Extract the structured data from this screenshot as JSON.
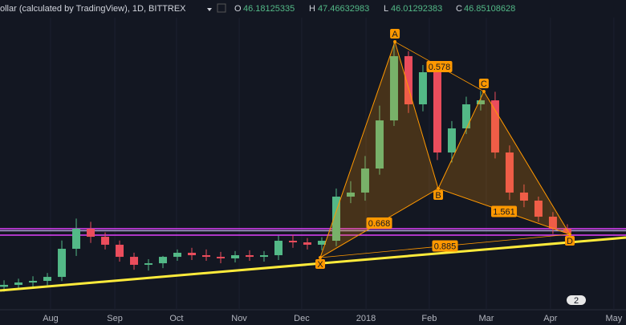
{
  "header": {
    "symbol": "ollar (calculated by TradingView), 1D, BITTREX",
    "o_label": "O",
    "o": 46.18125335,
    "h_label": "H",
    "h": 47.46632983,
    "l_label": "L",
    "l": 46.01292383,
    "c_label": "C",
    "c": 46.85108628
  },
  "badge": "2",
  "chart_data": {
    "type": "candlestick",
    "x": [
      0,
      1,
      2,
      3,
      4,
      5,
      6,
      7,
      8,
      9,
      10,
      11,
      12,
      13,
      14,
      15,
      16,
      17,
      18,
      19,
      20,
      21,
      22,
      23,
      24,
      25,
      26,
      27,
      28,
      29,
      30,
      31,
      32,
      33,
      34,
      35,
      36,
      37,
      38,
      39
    ],
    "open": [
      40.2,
      40.44,
      40.73,
      40.93,
      41.42,
      44.88,
      47.35,
      46.36,
      45.38,
      43.89,
      42.91,
      43.1,
      43.89,
      44.39,
      44.09,
      43.89,
      43.7,
      44.09,
      43.89,
      44.09,
      45.87,
      45.67,
      45.38,
      45.87,
      51.3,
      51.8,
      54.76,
      60.68,
      68.59,
      62.66,
      66.61,
      56.73,
      59.7,
      62.66,
      63.15,
      56.73,
      51.8,
      50.81,
      48.83,
      47.35
    ],
    "high": [
      41.0,
      41.2,
      41.5,
      41.9,
      45.9,
      48.6,
      48.2,
      46.9,
      45.9,
      44.4,
      43.6,
      44.0,
      44.8,
      45.0,
      44.8,
      44.5,
      44.6,
      44.7,
      44.6,
      46.5,
      46.6,
      46.2,
      46.3,
      52.3,
      53.2,
      56.3,
      62.5,
      70.4,
      69.2,
      67.5,
      67.2,
      60.6,
      63.6,
      64.3,
      64.2,
      57.6,
      52.8,
      51.3,
      49.4,
      47.9
    ],
    "low": [
      39.6,
      39.9,
      40.2,
      40.4,
      40.9,
      44.0,
      45.6,
      44.8,
      43.3,
      42.3,
      42.2,
      42.5,
      43.4,
      43.5,
      43.4,
      43.1,
      43.2,
      43.4,
      43.3,
      43.5,
      45.0,
      44.8,
      44.7,
      45.2,
      50.5,
      50.8,
      54.0,
      60.0,
      61.6,
      61.8,
      55.8,
      55.5,
      59.0,
      61.9,
      56.0,
      50.9,
      50.0,
      48.2,
      46.7,
      46.0
    ],
    "close": [
      40.44,
      40.73,
      40.93,
      41.42,
      44.88,
      47.35,
      46.36,
      45.38,
      43.89,
      42.91,
      43.1,
      43.89,
      44.39,
      44.09,
      43.89,
      43.7,
      44.09,
      43.89,
      44.09,
      45.87,
      45.67,
      45.38,
      45.87,
      51.3,
      51.8,
      54.76,
      60.68,
      68.59,
      62.66,
      66.61,
      56.73,
      59.7,
      62.66,
      63.15,
      56.73,
      51.8,
      50.81,
      48.83,
      47.35,
      46.86
    ],
    "up_color": "#53b987",
    "down_color": "#eb4d5c",
    "xlim": [
      -0.28,
      43.06
    ],
    "ylim": [
      35.5,
      75.5
    ],
    "xticks": [
      {
        "value": 3.22,
        "label": "Aug"
      },
      {
        "value": 7.67,
        "label": "Sep"
      },
      {
        "value": 11.94,
        "label": "Oct"
      },
      {
        "value": 16.28,
        "label": "Nov"
      },
      {
        "value": 20.61,
        "label": "Dec"
      },
      {
        "value": 25.06,
        "label": "2018"
      },
      {
        "value": 29.44,
        "label": "Feb"
      },
      {
        "value": 33.39,
        "label": "Mar"
      },
      {
        "value": 37.83,
        "label": "Apr"
      },
      {
        "value": 42.22,
        "label": "May"
      }
    ],
    "levels": [
      {
        "value": 47.35,
        "color": "#e040fb"
      },
      {
        "value": 47.1,
        "color": "#b39ddb"
      },
      {
        "value": 46.56,
        "color": "#e040fb"
      }
    ],
    "trendline": {
      "x": [
        -0.28,
        43.06
      ],
      "y": [
        39.75,
        46.26
      ],
      "color": "#ffeb3b"
    },
    "pattern": {
      "color": "#ff9800",
      "points": [
        {
          "label": "X",
          "x": 21.89,
          "y": 43.8
        },
        {
          "label": "A",
          "x": 27.06,
          "y": 70.36
        },
        {
          "label": "B",
          "x": 30.06,
          "y": 52.29
        },
        {
          "label": "C",
          "x": 33.22,
          "y": 64.24
        },
        {
          "label": "D",
          "x": 39.17,
          "y": 46.66
        }
      ],
      "ratios": [
        "0.668",
        "0.578",
        "1.561",
        "0.885"
      ]
    }
  }
}
